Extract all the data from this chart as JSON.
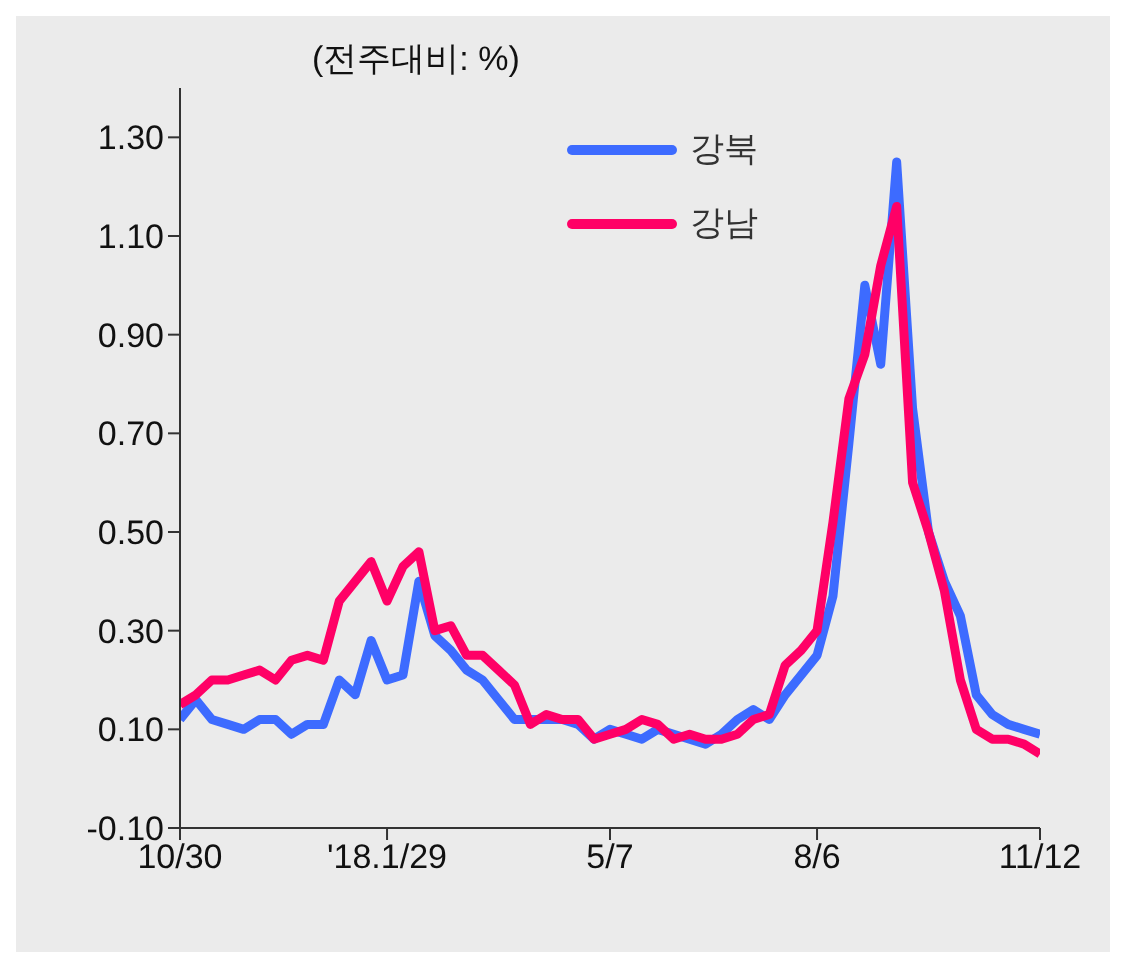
{
  "chart_data": {
    "type": "line",
    "ylabel": "(전주대비: %)",
    "categories": [
      "10/30",
      null,
      null,
      null,
      null,
      null,
      null,
      null,
      null,
      null,
      null,
      null,
      null,
      "'18.1/29",
      null,
      null,
      null,
      null,
      null,
      null,
      null,
      null,
      null,
      null,
      null,
      null,
      null,
      "5/7",
      null,
      null,
      null,
      null,
      null,
      null,
      null,
      null,
      null,
      null,
      null,
      null,
      "8/6",
      null,
      null,
      null,
      null,
      null,
      null,
      null,
      null,
      null,
      null,
      null,
      null,
      null,
      "11/12"
    ],
    "series": [
      {
        "name": "강북",
        "color": "#3d6bff",
        "values": [
          0.12,
          0.16,
          0.12,
          0.11,
          0.1,
          0.12,
          0.12,
          0.09,
          0.11,
          0.11,
          0.2,
          0.17,
          0.28,
          0.2,
          0.21,
          0.4,
          0.29,
          0.26,
          0.22,
          0.2,
          0.16,
          0.12,
          0.12,
          0.12,
          0.12,
          0.11,
          0.08,
          0.1,
          0.09,
          0.08,
          0.1,
          0.09,
          0.08,
          0.07,
          0.09,
          0.12,
          0.14,
          0.12,
          0.17,
          0.21,
          0.25,
          0.37,
          0.68,
          1.0,
          0.84,
          1.25,
          0.75,
          0.5,
          0.4,
          0.33,
          0.17,
          0.13,
          0.11,
          0.1,
          0.09
        ]
      },
      {
        "name": "강남",
        "color": "#ff0066",
        "values": [
          0.15,
          0.17,
          0.2,
          0.2,
          0.21,
          0.22,
          0.2,
          0.24,
          0.25,
          0.24,
          0.36,
          0.4,
          0.44,
          0.36,
          0.43,
          0.46,
          0.3,
          0.31,
          0.25,
          0.25,
          0.22,
          0.19,
          0.11,
          0.13,
          0.12,
          0.12,
          0.08,
          0.09,
          0.1,
          0.12,
          0.11,
          0.08,
          0.09,
          0.08,
          0.08,
          0.09,
          0.12,
          0.13,
          0.23,
          0.26,
          0.3,
          0.52,
          0.77,
          0.86,
          1.04,
          1.16,
          0.6,
          0.5,
          0.38,
          0.2,
          0.1,
          0.08,
          0.08,
          0.07,
          0.05
        ]
      }
    ],
    "ylim": [
      -0.1,
      1.4
    ],
    "yticks": [
      {
        "value": -0.1,
        "label": "-0.10"
      },
      {
        "value": 0.1,
        "label": "0.10"
      },
      {
        "value": 0.3,
        "label": "0.30"
      },
      {
        "value": 0.5,
        "label": "0.50"
      },
      {
        "value": 0.7,
        "label": "0.70"
      },
      {
        "value": 0.9,
        "label": "0.90"
      },
      {
        "value": 1.1,
        "label": "1.10"
      },
      {
        "value": 1.3,
        "label": "1.30"
      }
    ],
    "grid": false,
    "legend": "top right",
    "marker": "none",
    "line_style": "solid"
  }
}
